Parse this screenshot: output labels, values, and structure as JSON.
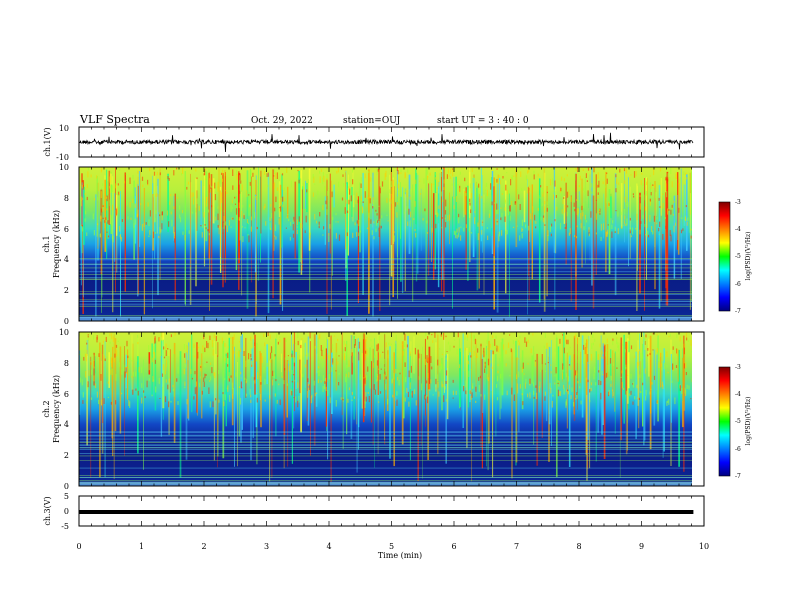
{
  "header": {
    "title": "VLF Spectra",
    "date": "Oct. 29, 2022",
    "station": "station=OUJ",
    "start": "start  UT =  3 : 40 : 0"
  },
  "chart_data": [
    {
      "type": "line",
      "ylabel": "ch.1(V)",
      "ylim": [
        -10,
        10
      ],
      "yticks": [
        "10",
        "-10"
      ],
      "xlim": [
        0,
        10
      ]
    },
    {
      "type": "heatmap",
      "ylabel_line1": "ch.1",
      "ylabel_line2": "Frequency (kHz)",
      "ylim": [
        0,
        10
      ],
      "yticks": [
        "0",
        "2",
        "4",
        "6",
        "8",
        "10"
      ],
      "colorbar": {
        "label": "log(PSD)(V²/Hz)",
        "range": [
          -7,
          -3
        ],
        "ticks": [
          "-3",
          "-4",
          "-5",
          "-6",
          "-7"
        ]
      }
    },
    {
      "type": "heatmap",
      "ylabel_line1": "ch.2",
      "ylabel_line2": "Frequency (kHz)",
      "ylim": [
        0,
        10
      ],
      "yticks": [
        "0",
        "2",
        "4",
        "6",
        "8",
        "10"
      ],
      "colorbar": {
        "label": "log(PSD)(V²/Hz)",
        "range": [
          -7,
          -3
        ],
        "ticks": [
          "-3",
          "-4",
          "-5",
          "-6",
          "-7"
        ]
      }
    },
    {
      "type": "line",
      "ylabel": "ch.3(V)",
      "ylim": [
        -5,
        5
      ],
      "yticks": [
        "5",
        "0",
        "-5"
      ],
      "xlim": [
        0,
        10
      ]
    }
  ],
  "xaxis": {
    "label": "Time (min)",
    "ticks": [
      "0",
      "1",
      "2",
      "3",
      "4",
      "5",
      "6",
      "7",
      "8",
      "9",
      "10"
    ],
    "data_end": 9.83
  }
}
